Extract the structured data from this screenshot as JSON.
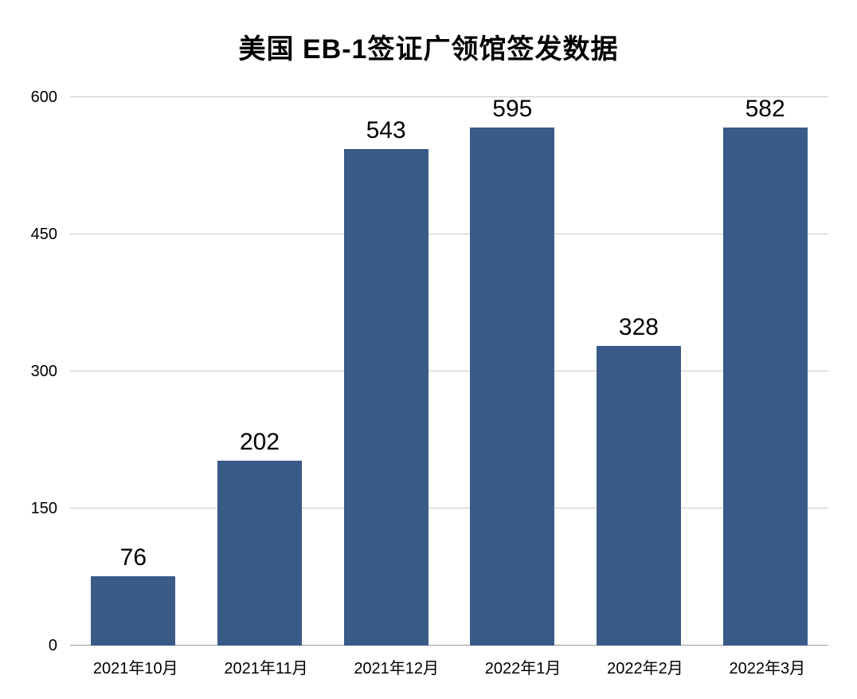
{
  "chart_data": {
    "type": "bar",
    "title": "美国 EB-1签证广领馆签发数据",
    "categories": [
      "2021年10月",
      "2021年11月",
      "2021年12月",
      "2022年1月",
      "2022年2月",
      "2022年3月"
    ],
    "values": [
      76,
      202,
      543,
      595,
      328,
      582
    ],
    "xlabel": "",
    "ylabel": "",
    "ylim": [
      0,
      600
    ],
    "yticks": [
      0,
      150,
      300,
      450,
      600
    ],
    "grid": true,
    "legend_position": "none",
    "bar_color": "#3A5A88",
    "gridline_color": "#c9c9c9",
    "label_color": "#000000",
    "background_color": "#ffffff"
  }
}
